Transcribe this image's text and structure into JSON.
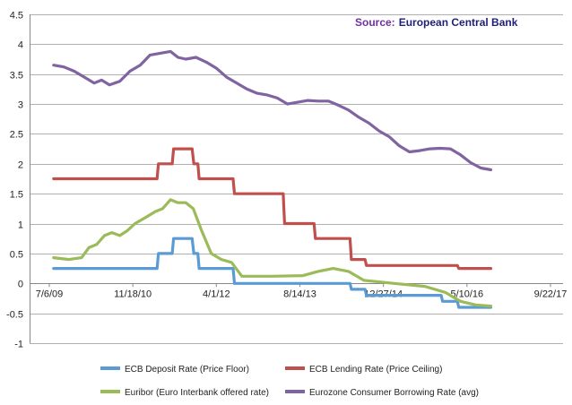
{
  "source_label": "Source:",
  "source_text": "European Central Bank",
  "colors": {
    "source_label": "#7030a0",
    "source_text": "#1f1f7a",
    "axis": "#888888",
    "grid": "#b0b0b0"
  },
  "chart_data": {
    "type": "line",
    "title": "",
    "xlabel": "",
    "ylabel": "",
    "ylim": [
      -1,
      4.5
    ],
    "y_ticks": [
      "-1",
      "-0.5",
      "0",
      "0.5",
      "1",
      "1.5",
      "2",
      "2.5",
      "3",
      "3.5",
      "4",
      "4.5"
    ],
    "x_ticks": [
      "7/6/09",
      "11/18/10",
      "4/1/12",
      "8/14/13",
      "12/27/14",
      "5/10/16",
      "9/22/17"
    ],
    "xlim": [
      "2009-07-06",
      "2017-09-22"
    ],
    "grid": "horizontal",
    "legend_position": "bottom",
    "series": [
      {
        "name": "ECB Deposit Rate (Price Floor)",
        "color": "#5b9bd5",
        "points": [
          [
            "2009-08-01",
            0.25
          ],
          [
            "2011-04-12",
            0.25
          ],
          [
            "2011-04-20",
            0.5
          ],
          [
            "2011-07-12",
            0.5
          ],
          [
            "2011-07-20",
            0.75
          ],
          [
            "2011-11-08",
            0.75
          ],
          [
            "2011-11-18",
            0.5
          ],
          [
            "2011-12-12",
            0.5
          ],
          [
            "2011-12-20",
            0.25
          ],
          [
            "2012-07-10",
            0.25
          ],
          [
            "2012-07-18",
            0.0
          ],
          [
            "2014-06-10",
            0.0
          ],
          [
            "2014-06-18",
            -0.1
          ],
          [
            "2014-09-08",
            -0.1
          ],
          [
            "2014-09-16",
            -0.2
          ],
          [
            "2015-12-08",
            -0.2
          ],
          [
            "2015-12-16",
            -0.3
          ],
          [
            "2016-03-14",
            -0.3
          ],
          [
            "2016-03-22",
            -0.4
          ],
          [
            "2016-09-30",
            -0.4
          ]
        ]
      },
      {
        "name": "ECB Lending Rate (Price Ceiling)",
        "color": "#c0504d",
        "points": [
          [
            "2009-08-01",
            1.75
          ],
          [
            "2011-04-12",
            1.75
          ],
          [
            "2011-04-20",
            2.0
          ],
          [
            "2011-07-12",
            2.0
          ],
          [
            "2011-07-20",
            2.25
          ],
          [
            "2011-11-08",
            2.25
          ],
          [
            "2011-11-18",
            2.0
          ],
          [
            "2011-12-12",
            2.0
          ],
          [
            "2011-12-20",
            1.75
          ],
          [
            "2012-07-10",
            1.75
          ],
          [
            "2012-07-18",
            1.5
          ],
          [
            "2013-05-06",
            1.5
          ],
          [
            "2013-05-14",
            1.0
          ],
          [
            "2013-11-07",
            1.0
          ],
          [
            "2013-11-15",
            0.75
          ],
          [
            "2014-06-10",
            0.75
          ],
          [
            "2014-06-18",
            0.4
          ],
          [
            "2014-09-08",
            0.4
          ],
          [
            "2014-09-16",
            0.3
          ],
          [
            "2016-03-14",
            0.3
          ],
          [
            "2016-03-22",
            0.25
          ],
          [
            "2016-09-30",
            0.25
          ]
        ]
      },
      {
        "name": "Euribor (Euro Interbank offered rate)",
        "color": "#9bbb59",
        "points": [
          [
            "2009-08-01",
            0.43
          ],
          [
            "2009-11-01",
            0.4
          ],
          [
            "2010-01-15",
            0.43
          ],
          [
            "2010-03-01",
            0.6
          ],
          [
            "2010-04-15",
            0.65
          ],
          [
            "2010-06-01",
            0.8
          ],
          [
            "2010-07-15",
            0.85
          ],
          [
            "2010-09-01",
            0.8
          ],
          [
            "2010-10-15",
            0.88
          ],
          [
            "2010-12-01",
            1.0
          ],
          [
            "2011-02-01",
            1.1
          ],
          [
            "2011-04-01",
            1.2
          ],
          [
            "2011-05-15",
            1.25
          ],
          [
            "2011-07-01",
            1.4
          ],
          [
            "2011-08-15",
            1.35
          ],
          [
            "2011-10-01",
            1.35
          ],
          [
            "2011-11-15",
            1.25
          ],
          [
            "2012-01-01",
            0.9
          ],
          [
            "2012-03-01",
            0.5
          ],
          [
            "2012-05-01",
            0.4
          ],
          [
            "2012-07-01",
            0.35
          ],
          [
            "2012-09-01",
            0.12
          ],
          [
            "2013-03-01",
            0.12
          ],
          [
            "2013-09-01",
            0.13
          ],
          [
            "2013-12-01",
            0.2
          ],
          [
            "2014-03-01",
            0.25
          ],
          [
            "2014-06-01",
            0.2
          ],
          [
            "2014-09-01",
            0.05
          ],
          [
            "2015-03-01",
            0.0
          ],
          [
            "2015-09-01",
            -0.05
          ],
          [
            "2016-01-01",
            -0.15
          ],
          [
            "2016-04-01",
            -0.3
          ],
          [
            "2016-07-01",
            -0.36
          ],
          [
            "2016-09-30",
            -0.38
          ]
        ]
      },
      {
        "name": "Eurozone Consumer Borrowing Rate (avg)",
        "color": "#8064a2",
        "points": [
          [
            "2009-08-01",
            3.65
          ],
          [
            "2009-10-01",
            3.62
          ],
          [
            "2009-12-01",
            3.55
          ],
          [
            "2010-02-01",
            3.45
          ],
          [
            "2010-04-01",
            3.35
          ],
          [
            "2010-05-15",
            3.4
          ],
          [
            "2010-07-01",
            3.32
          ],
          [
            "2010-09-01",
            3.38
          ],
          [
            "2010-11-01",
            3.55
          ],
          [
            "2011-01-01",
            3.65
          ],
          [
            "2011-03-01",
            3.82
          ],
          [
            "2011-05-01",
            3.85
          ],
          [
            "2011-07-01",
            3.88
          ],
          [
            "2011-08-15",
            3.78
          ],
          [
            "2011-10-01",
            3.75
          ],
          [
            "2011-12-01",
            3.78
          ],
          [
            "2012-02-01",
            3.7
          ],
          [
            "2012-04-01",
            3.6
          ],
          [
            "2012-06-01",
            3.45
          ],
          [
            "2012-08-01",
            3.35
          ],
          [
            "2012-10-01",
            3.25
          ],
          [
            "2012-12-01",
            3.18
          ],
          [
            "2013-02-01",
            3.15
          ],
          [
            "2013-04-01",
            3.1
          ],
          [
            "2013-06-01",
            3.0
          ],
          [
            "2013-08-01",
            3.03
          ],
          [
            "2013-10-01",
            3.06
          ],
          [
            "2013-12-01",
            3.05
          ],
          [
            "2014-02-01",
            3.05
          ],
          [
            "2014-04-01",
            2.98
          ],
          [
            "2014-06-01",
            2.9
          ],
          [
            "2014-08-01",
            2.78
          ],
          [
            "2014-10-01",
            2.68
          ],
          [
            "2014-12-01",
            2.55
          ],
          [
            "2015-02-01",
            2.45
          ],
          [
            "2015-04-01",
            2.3
          ],
          [
            "2015-06-01",
            2.2
          ],
          [
            "2015-08-01",
            2.22
          ],
          [
            "2015-10-01",
            2.25
          ],
          [
            "2015-12-01",
            2.26
          ],
          [
            "2016-02-01",
            2.25
          ],
          [
            "2016-04-01",
            2.15
          ],
          [
            "2016-06-01",
            2.02
          ],
          [
            "2016-08-01",
            1.93
          ],
          [
            "2016-09-30",
            1.9
          ]
        ]
      }
    ]
  }
}
